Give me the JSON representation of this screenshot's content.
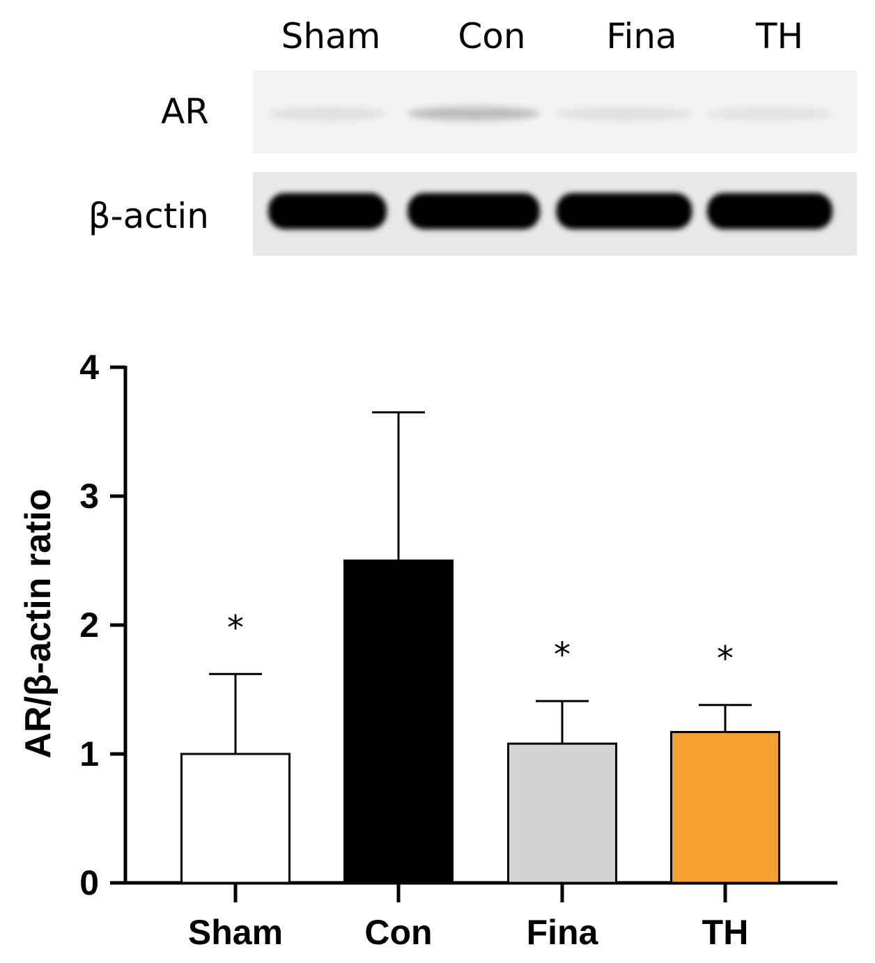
{
  "blot": {
    "lanes": [
      "Sham",
      "Con",
      "Fina",
      "TH"
    ],
    "rows": [
      {
        "label": "AR",
        "band_intensity": [
          0.08,
          0.22,
          0.08,
          0.07
        ]
      },
      {
        "label": "β-actin",
        "band_intensity": [
          1.0,
          1.0,
          1.0,
          1.0
        ]
      }
    ]
  },
  "chart_data": {
    "type": "bar",
    "categories": [
      "Sham",
      "Con",
      "Fina",
      "TH"
    ],
    "values": [
      1.0,
      2.5,
      1.08,
      1.17
    ],
    "error_upper": [
      1.62,
      3.65,
      1.41,
      1.38
    ],
    "significance": [
      "*",
      "",
      "*",
      "*"
    ],
    "bar_colors": [
      "#ffffff",
      "#000000",
      "#d3d3d3",
      "#f7a032"
    ],
    "ylabel": "AR/β-actin ratio",
    "xlabel": "",
    "ylim": [
      0,
      4
    ],
    "yticks": [
      "0",
      "1",
      "2",
      "3",
      "4"
    ],
    "grid": false
  }
}
